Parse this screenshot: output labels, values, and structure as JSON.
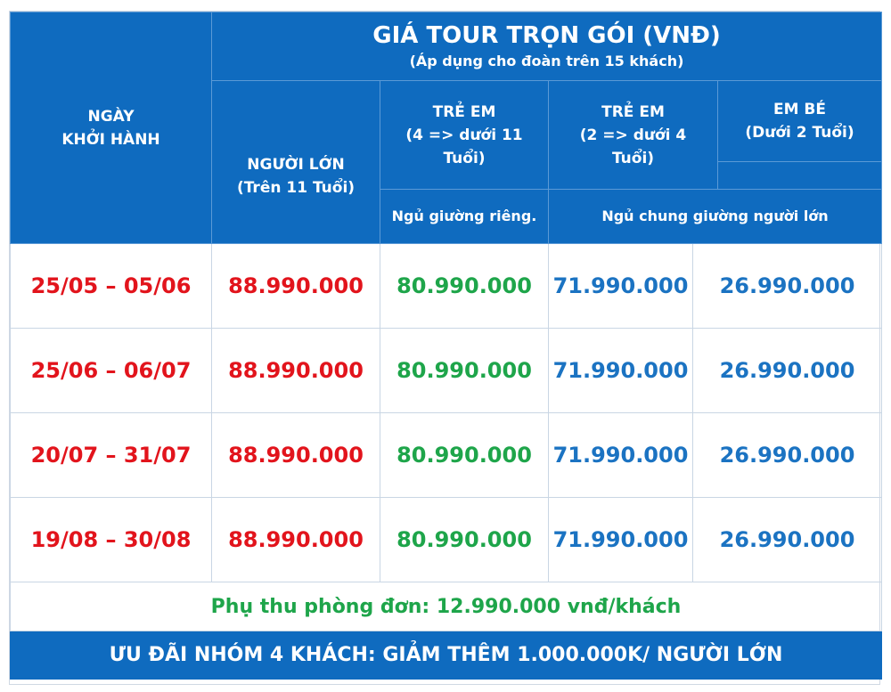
{
  "header": {
    "date_col": [
      "NGÀY",
      "KHỞI HÀNH"
    ],
    "title": "GIÁ TOUR TRỌN GÓI (VNĐ)",
    "subtitle": "(Áp dụng cho đoàn trên 15 khách)",
    "adult": [
      "NGƯỜI LỚN",
      "(Trên 11 Tuổi)"
    ],
    "child1": [
      "TRẺ EM",
      "(4 => dưới 11",
      "Tuổi)"
    ],
    "child2": [
      "TRẺ EM",
      "(2 => dưới 4",
      "Tuổi)"
    ],
    "baby": [
      "EM BÉ",
      "(Dưới 2 Tuổi)"
    ],
    "bed_private": "Ngủ giường riêng.",
    "bed_shared": "Ngủ chung giường người lớn"
  },
  "rows": [
    {
      "date": "25/05 – 05/06",
      "adult": "88.990.000",
      "child1": "80.990.000",
      "child2": "71.990.000",
      "baby": "26.990.000"
    },
    {
      "date": "25/06 – 06/07",
      "adult": "88.990.000",
      "child1": "80.990.000",
      "child2": "71.990.000",
      "baby": "26.990.000"
    },
    {
      "date": "20/07 – 31/07",
      "adult": "88.990.000",
      "child1": "80.990.000",
      "child2": "71.990.000",
      "baby": "26.990.000"
    },
    {
      "date": "19/08 – 30/08",
      "adult": "88.990.000",
      "child1": "80.990.000",
      "child2": "71.990.000",
      "baby": "26.990.000"
    }
  ],
  "surcharge": "Phụ thu phòng đơn: 12.990.000 vnđ/khách",
  "promo": "ƯU ĐÃI NHÓM 4 KHÁCH: GIẢM THÊM 1.000.000K/ NGƯỜI LỚN",
  "colors": {
    "header_bg": "#0f6bbf",
    "date": "#e2141c",
    "adult": "#e2141c",
    "child1": "#1ea54a",
    "child2": "#1b73c2",
    "baby": "#1b73c2"
  }
}
